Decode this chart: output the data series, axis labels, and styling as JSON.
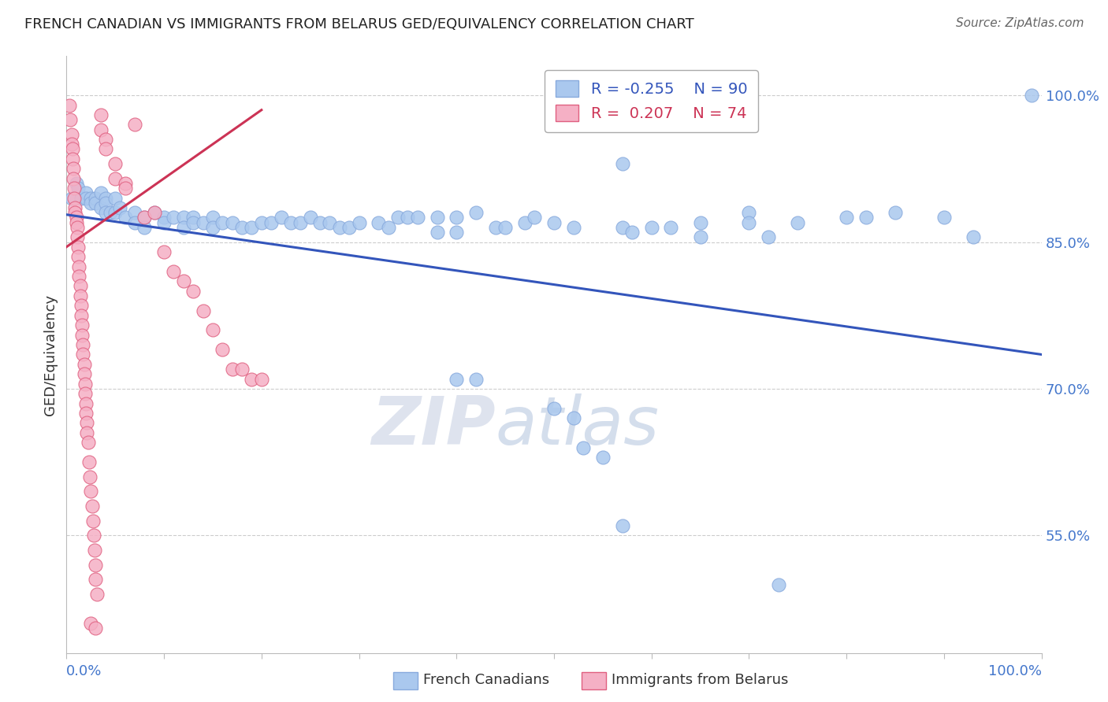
{
  "title": "FRENCH CANADIAN VS IMMIGRANTS FROM BELARUS GED/EQUIVALENCY CORRELATION CHART",
  "source": "Source: ZipAtlas.com",
  "ylabel": "GED/Equivalency",
  "y_ticks": [
    0.55,
    0.7,
    0.85,
    1.0
  ],
  "y_tick_labels": [
    "55.0%",
    "70.0%",
    "85.0%",
    "100.0%"
  ],
  "xlim": [
    0.0,
    1.0
  ],
  "ylim": [
    0.43,
    1.04
  ],
  "blue_scatter": [
    [
      0.005,
      0.895
    ],
    [
      0.01,
      0.91
    ],
    [
      0.012,
      0.905
    ],
    [
      0.015,
      0.895
    ],
    [
      0.02,
      0.9
    ],
    [
      0.02,
      0.895
    ],
    [
      0.025,
      0.895
    ],
    [
      0.025,
      0.89
    ],
    [
      0.03,
      0.895
    ],
    [
      0.03,
      0.89
    ],
    [
      0.035,
      0.9
    ],
    [
      0.035,
      0.885
    ],
    [
      0.04,
      0.895
    ],
    [
      0.04,
      0.89
    ],
    [
      0.04,
      0.88
    ],
    [
      0.045,
      0.88
    ],
    [
      0.05,
      0.895
    ],
    [
      0.05,
      0.88
    ],
    [
      0.055,
      0.885
    ],
    [
      0.06,
      0.875
    ],
    [
      0.07,
      0.88
    ],
    [
      0.07,
      0.87
    ],
    [
      0.08,
      0.875
    ],
    [
      0.08,
      0.865
    ],
    [
      0.09,
      0.88
    ],
    [
      0.1,
      0.875
    ],
    [
      0.1,
      0.87
    ],
    [
      0.11,
      0.875
    ],
    [
      0.12,
      0.875
    ],
    [
      0.12,
      0.865
    ],
    [
      0.13,
      0.875
    ],
    [
      0.13,
      0.87
    ],
    [
      0.14,
      0.87
    ],
    [
      0.15,
      0.875
    ],
    [
      0.15,
      0.865
    ],
    [
      0.16,
      0.87
    ],
    [
      0.17,
      0.87
    ],
    [
      0.18,
      0.865
    ],
    [
      0.19,
      0.865
    ],
    [
      0.2,
      0.87
    ],
    [
      0.21,
      0.87
    ],
    [
      0.22,
      0.875
    ],
    [
      0.23,
      0.87
    ],
    [
      0.24,
      0.87
    ],
    [
      0.25,
      0.875
    ],
    [
      0.26,
      0.87
    ],
    [
      0.27,
      0.87
    ],
    [
      0.28,
      0.865
    ],
    [
      0.29,
      0.865
    ],
    [
      0.3,
      0.87
    ],
    [
      0.32,
      0.87
    ],
    [
      0.33,
      0.865
    ],
    [
      0.34,
      0.875
    ],
    [
      0.35,
      0.875
    ],
    [
      0.36,
      0.875
    ],
    [
      0.38,
      0.875
    ],
    [
      0.4,
      0.875
    ],
    [
      0.42,
      0.88
    ],
    [
      0.44,
      0.865
    ],
    [
      0.45,
      0.865
    ],
    [
      0.47,
      0.87
    ],
    [
      0.48,
      0.875
    ],
    [
      0.5,
      0.87
    ],
    [
      0.52,
      0.865
    ],
    [
      0.38,
      0.86
    ],
    [
      0.4,
      0.86
    ],
    [
      0.55,
      0.98
    ],
    [
      0.57,
      0.93
    ],
    [
      0.57,
      0.865
    ],
    [
      0.58,
      0.86
    ],
    [
      0.6,
      0.865
    ],
    [
      0.62,
      0.865
    ],
    [
      0.65,
      0.87
    ],
    [
      0.65,
      0.855
    ],
    [
      0.7,
      0.88
    ],
    [
      0.7,
      0.87
    ],
    [
      0.72,
      0.855
    ],
    [
      0.75,
      0.87
    ],
    [
      0.8,
      0.875
    ],
    [
      0.82,
      0.875
    ],
    [
      0.85,
      0.88
    ],
    [
      0.9,
      0.875
    ],
    [
      0.93,
      0.855
    ],
    [
      0.99,
      1.0
    ],
    [
      0.4,
      0.71
    ],
    [
      0.42,
      0.71
    ],
    [
      0.5,
      0.68
    ],
    [
      0.52,
      0.67
    ],
    [
      0.53,
      0.64
    ],
    [
      0.55,
      0.63
    ],
    [
      0.57,
      0.56
    ],
    [
      0.73,
      0.5
    ]
  ],
  "pink_scatter": [
    [
      0.003,
      0.99
    ],
    [
      0.004,
      0.975
    ],
    [
      0.005,
      0.96
    ],
    [
      0.005,
      0.95
    ],
    [
      0.006,
      0.945
    ],
    [
      0.006,
      0.935
    ],
    [
      0.007,
      0.925
    ],
    [
      0.007,
      0.915
    ],
    [
      0.008,
      0.905
    ],
    [
      0.008,
      0.895
    ],
    [
      0.009,
      0.885
    ],
    [
      0.009,
      0.88
    ],
    [
      0.01,
      0.875
    ],
    [
      0.01,
      0.87
    ],
    [
      0.011,
      0.865
    ],
    [
      0.011,
      0.855
    ],
    [
      0.012,
      0.845
    ],
    [
      0.012,
      0.835
    ],
    [
      0.013,
      0.825
    ],
    [
      0.013,
      0.815
    ],
    [
      0.014,
      0.805
    ],
    [
      0.014,
      0.795
    ],
    [
      0.015,
      0.785
    ],
    [
      0.015,
      0.775
    ],
    [
      0.016,
      0.765
    ],
    [
      0.016,
      0.755
    ],
    [
      0.017,
      0.745
    ],
    [
      0.017,
      0.735
    ],
    [
      0.018,
      0.725
    ],
    [
      0.018,
      0.715
    ],
    [
      0.019,
      0.705
    ],
    [
      0.019,
      0.695
    ],
    [
      0.02,
      0.685
    ],
    [
      0.02,
      0.675
    ],
    [
      0.021,
      0.665
    ],
    [
      0.021,
      0.655
    ],
    [
      0.022,
      0.645
    ],
    [
      0.023,
      0.625
    ],
    [
      0.024,
      0.61
    ],
    [
      0.025,
      0.595
    ],
    [
      0.026,
      0.58
    ],
    [
      0.027,
      0.565
    ],
    [
      0.028,
      0.55
    ],
    [
      0.029,
      0.535
    ],
    [
      0.03,
      0.52
    ],
    [
      0.03,
      0.505
    ],
    [
      0.031,
      0.49
    ],
    [
      0.035,
      0.98
    ],
    [
      0.035,
      0.965
    ],
    [
      0.04,
      0.955
    ],
    [
      0.04,
      0.945
    ],
    [
      0.05,
      0.93
    ],
    [
      0.05,
      0.915
    ],
    [
      0.06,
      0.91
    ],
    [
      0.06,
      0.905
    ],
    [
      0.07,
      0.97
    ],
    [
      0.08,
      0.875
    ],
    [
      0.09,
      0.88
    ],
    [
      0.1,
      0.84
    ],
    [
      0.11,
      0.82
    ],
    [
      0.12,
      0.81
    ],
    [
      0.13,
      0.8
    ],
    [
      0.14,
      0.78
    ],
    [
      0.15,
      0.76
    ],
    [
      0.16,
      0.74
    ],
    [
      0.17,
      0.72
    ],
    [
      0.18,
      0.72
    ],
    [
      0.19,
      0.71
    ],
    [
      0.2,
      0.71
    ],
    [
      0.025,
      0.46
    ],
    [
      0.03,
      0.455
    ]
  ],
  "blue_line_x": [
    0.0,
    1.0
  ],
  "blue_line_y": [
    0.878,
    0.735
  ],
  "pink_line_x": [
    0.0,
    0.2
  ],
  "pink_line_y": [
    0.845,
    0.985
  ],
  "scatter_color_blue": "#aac8ee",
  "scatter_edge_blue": "#88aadd",
  "scatter_color_pink": "#f5b0c5",
  "scatter_edge_pink": "#e06080",
  "line_color_blue": "#3355bb",
  "line_color_pink": "#cc3355",
  "legend_r_blue": "R = -0.255",
  "legend_n_blue": "N = 90",
  "legend_r_pink": "R =  0.207",
  "legend_n_pink": "N = 74",
  "watermark_zip": "ZIP",
  "watermark_atlas": "atlas",
  "bg_color": "#ffffff",
  "grid_color": "#cccccc",
  "title_color": "#222222",
  "tick_label_color": "#4477cc"
}
